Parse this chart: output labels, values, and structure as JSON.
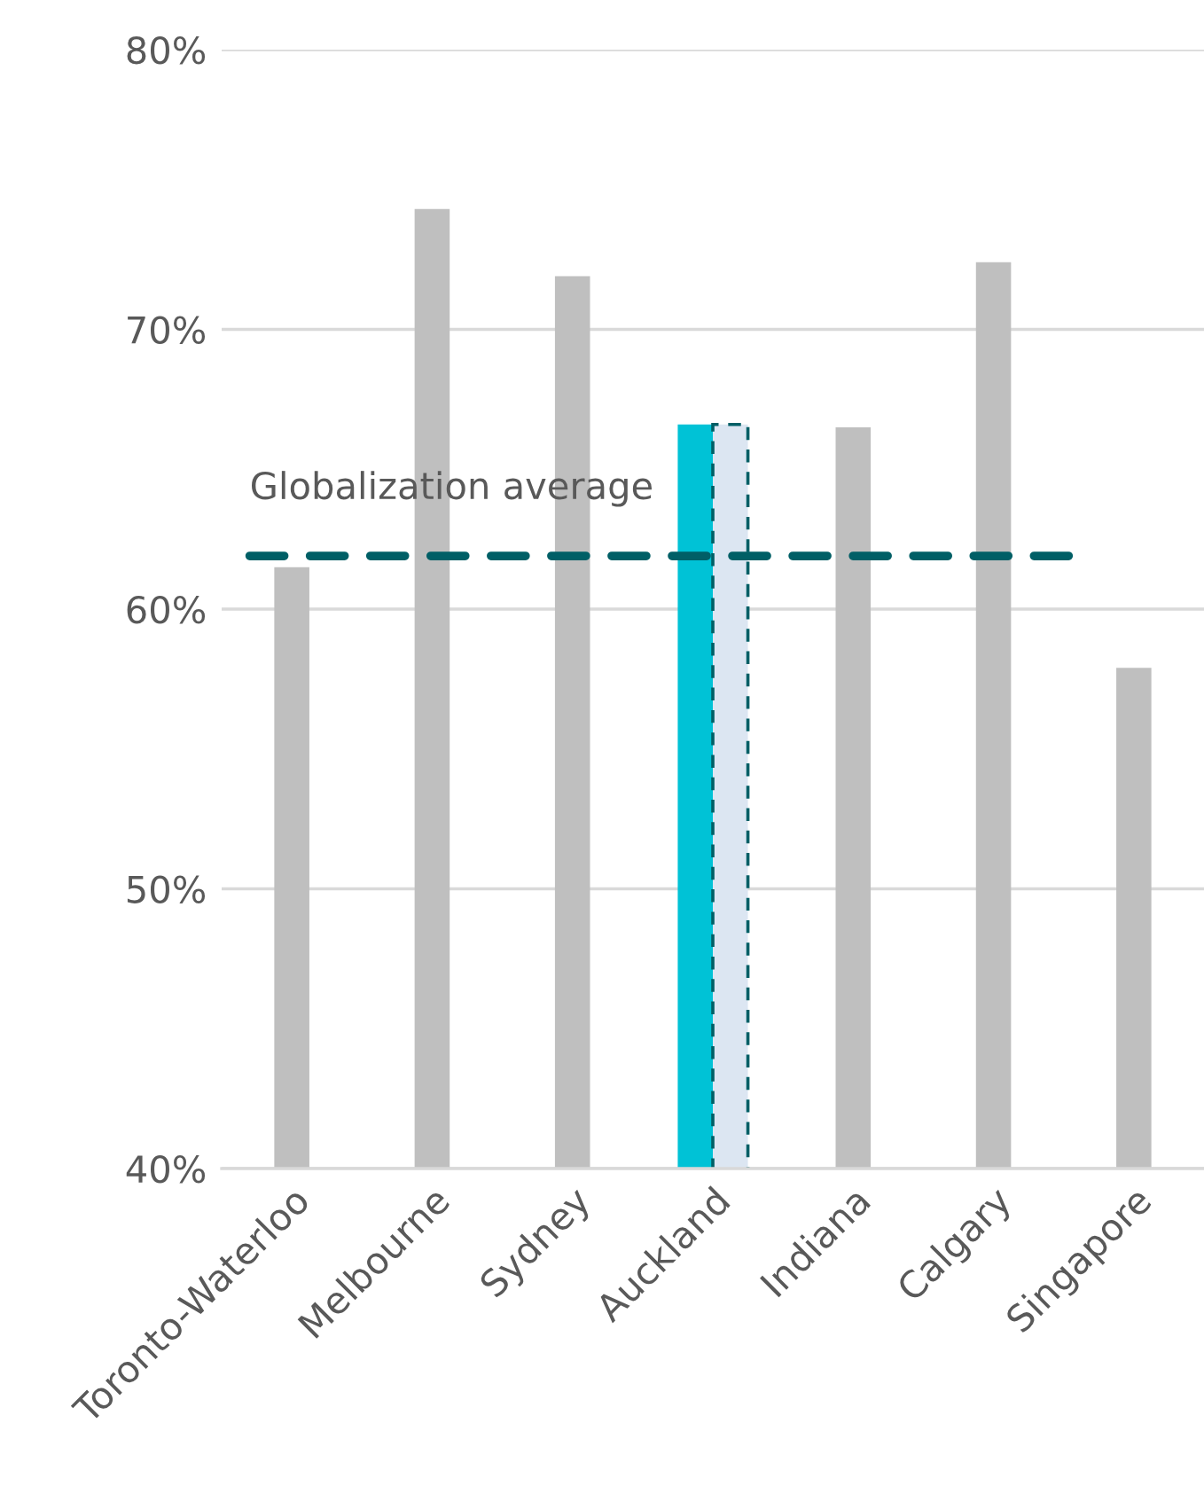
{
  "chart_data": {
    "type": "bar",
    "categories": [
      "Toronto-Waterloo",
      "Melbourne",
      "Sydney",
      "Auckland",
      "Indiana",
      "Calgary",
      "Singapore"
    ],
    "series": [
      {
        "colors": [
          "#bfbfbf",
          "#bfbfbf",
          "#bfbfbf",
          "#00c2d6",
          "#bfbfbf",
          "#bfbfbf",
          "#bfbfbf"
        ],
        "values": [
          61.5,
          74.3,
          71.9,
          66.6,
          66.5,
          72.4,
          57.9
        ]
      },
      {
        "color": "#dce6f2",
        "line_style": "dashed",
        "values": [
          null,
          null,
          null,
          66.6,
          null,
          null,
          null
        ]
      }
    ],
    "ylim": [
      40,
      80
    ],
    "yticks": [
      {
        "value": 40,
        "label": "40%"
      },
      {
        "value": 50,
        "label": "50%"
      },
      {
        "value": 60,
        "label": "60%"
      },
      {
        "value": 70,
        "label": "70%"
      },
      {
        "value": 80,
        "label": "80%"
      }
    ],
    "grid": "y",
    "ref_lines": [
      {
        "axis": "y",
        "value": 61.9,
        "label": "Globalization average",
        "color": "#005f66",
        "line_style": "dashed"
      }
    ]
  }
}
